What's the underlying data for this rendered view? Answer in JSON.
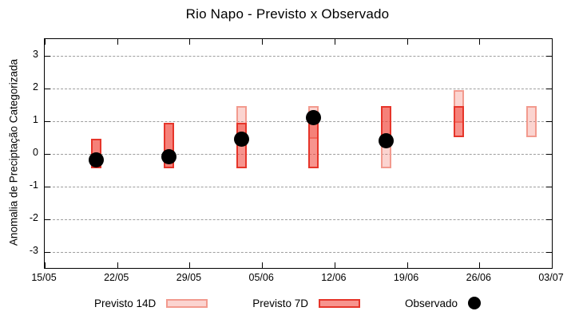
{
  "chart_data": {
    "type": "bar",
    "subtype": "forecast-range-boxes-with-observed-points",
    "title": "Rio Napo - Previsto x Observado",
    "xlabel": "",
    "ylabel": "Anomalia de Preciptação Categorizada",
    "ylim": [
      -3.5,
      3.5
    ],
    "yticks": [
      -3,
      -2,
      -1,
      0,
      1,
      2,
      3
    ],
    "grid": "horizontal-dashed",
    "legend_position": "bottom-center",
    "x_axis": {
      "tick_labels": [
        "15/05",
        "22/05",
        "29/05",
        "05/06",
        "12/06",
        "19/06",
        "26/06",
        "03/07"
      ],
      "tick_days": [
        0,
        7,
        14,
        21,
        28,
        35,
        42,
        49
      ],
      "total_days": 49
    },
    "series": [
      {
        "name": "Previsto 14D",
        "style": "box14",
        "points": [
          {
            "date": "20/05",
            "day": 5,
            "low": -0.45,
            "high": 0.45
          },
          {
            "date": "27/05",
            "day": 12,
            "low": -0.45,
            "high": 0.95
          },
          {
            "date": "03/06",
            "day": 19,
            "low": 0.45,
            "high": 1.45
          },
          {
            "date": "10/06",
            "day": 26,
            "low": 0.45,
            "high": 1.45
          },
          {
            "date": "17/06",
            "day": 33,
            "low": -0.45,
            "high": 1.45
          },
          {
            "date": "24/06",
            "day": 40,
            "low": 0.95,
            "high": 1.95
          },
          {
            "date": "01/07",
            "day": 47,
            "low": 0.5,
            "high": 1.45
          }
        ]
      },
      {
        "name": "Previsto 7D",
        "style": "box7",
        "points": [
          {
            "date": "20/05",
            "day": 5,
            "low": -0.45,
            "high": 0.45
          },
          {
            "date": "27/05",
            "day": 12,
            "low": -0.45,
            "high": 0.95
          },
          {
            "date": "03/06",
            "day": 19,
            "low": -0.45,
            "high": 0.95
          },
          {
            "date": "10/06",
            "day": 26,
            "low": -0.45,
            "high": 0.95
          },
          {
            "date": "17/06",
            "day": 33,
            "low": 0.45,
            "high": 1.45
          },
          {
            "date": "24/06",
            "day": 40,
            "low": 0.5,
            "high": 1.45
          }
        ]
      },
      {
        "name": "Observado",
        "style": "point",
        "points": [
          {
            "date": "20/05",
            "day": 5,
            "value": -0.2
          },
          {
            "date": "27/05",
            "day": 12,
            "value": -0.1
          },
          {
            "date": "03/06",
            "day": 19,
            "value": 0.45
          },
          {
            "date": "10/06",
            "day": 26,
            "value": 1.1
          },
          {
            "date": "17/06",
            "day": 33,
            "value": 0.4
          }
        ]
      }
    ]
  },
  "legend": {
    "previsto14d_label": "Previsto 14D",
    "previsto7d_label": "Previsto 7D",
    "observado_label": "Observado"
  },
  "colors": {
    "box14-fill": "rgba(242,100,85,0.28)",
    "box14-border": "#f29a8e",
    "box7-fill": "rgba(240,60,50,0.55)",
    "box7-border": "#e6352a",
    "observed": "#000000",
    "grid": "#9e9e9e",
    "axis": "#000000",
    "background": "#ffffff"
  }
}
